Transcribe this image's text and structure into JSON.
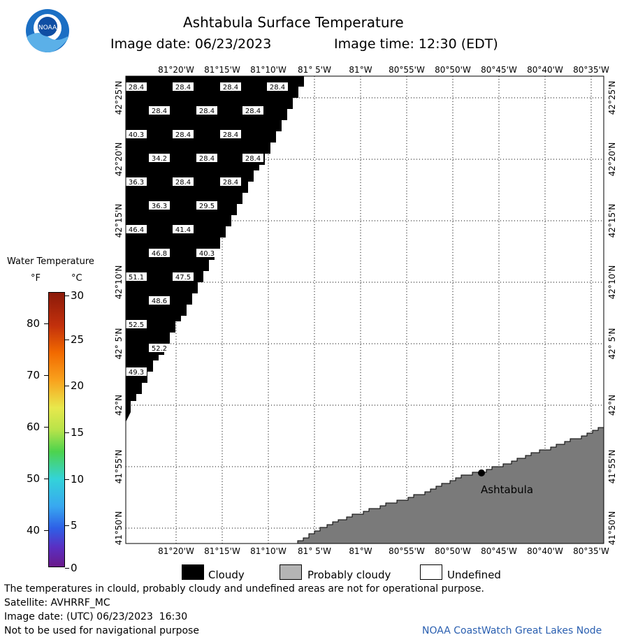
{
  "header": {
    "title": "Ashtabula Surface Temperature",
    "image_date_label": "Image date: 06/23/2023",
    "image_time_label": "Image time: 12:30 (EDT)",
    "logo_text": "NOAA"
  },
  "map": {
    "lon_labels": [
      "81°20'W",
      "81°15'W",
      "81°10'W",
      "81° 5'W",
      "81°W",
      "80°55'W",
      "80°50'W",
      "80°45'W",
      "80°40'W",
      "80°35'W"
    ],
    "lat_labels": [
      "42°25'N",
      "42°20'N",
      "42°15'N",
      "42°10'N",
      "42° 5'N",
      "42°N",
      "41°55'N",
      "41°50'N"
    ],
    "city_label": "Ashtabula",
    "temperatures": [
      {
        "row": 0,
        "values": [
          "28.4",
          "28.4",
          "28.4",
          "28.4"
        ]
      },
      {
        "row": 1,
        "values": [
          "28.4",
          "28.4",
          "28.4"
        ]
      },
      {
        "row": 2,
        "values": [
          "40.3",
          "28.4",
          "28.4"
        ]
      },
      {
        "row": 3,
        "values": [
          "34.2",
          "28.4",
          "28.4"
        ]
      },
      {
        "row": 4,
        "values": [
          "36.3",
          "28.4",
          "28.4"
        ]
      },
      {
        "row": 5,
        "values": [
          "36.3",
          "29.5"
        ]
      },
      {
        "row": 6,
        "values": [
          "46.4",
          "41.4"
        ]
      },
      {
        "row": 7,
        "values": [
          "46.8",
          "40.3"
        ]
      },
      {
        "row": 8,
        "values": [
          "51.1",
          "47.5"
        ]
      },
      {
        "row": 9,
        "values": [
          "48.6"
        ]
      },
      {
        "row": 10,
        "values": [
          "52.5"
        ]
      },
      {
        "row": 11,
        "values": [
          "52.2"
        ]
      },
      {
        "row": 12,
        "values": [
          "49.3"
        ]
      }
    ]
  },
  "colorbar": {
    "title": "Water Temperature",
    "unit_f": "°F",
    "unit_c": "°C",
    "f_ticks": [
      "80",
      "70",
      "60",
      "50",
      "40"
    ],
    "c_ticks": [
      "30",
      "25",
      "20",
      "15",
      "10",
      "5",
      "0"
    ]
  },
  "legend": {
    "cloudy": "Cloudy",
    "probably_cloudy": "Probably cloudy",
    "undefined": "Undefined",
    "colors": {
      "cloudy": "#000000",
      "probably_cloudy": "#b4b4b4",
      "undefined": "#ffffff",
      "land": "#7a7a7a"
    }
  },
  "footer": {
    "disclaimer": "The temperatures in clould, probably cloudy and undefined areas are not for operational purpose.",
    "satellite": "Satellite: AVHRRF_MC",
    "utc_date": "Image date: (UTC) 06/23/2023  16:30",
    "nav_warning": "Not to be used for navigational purpose",
    "credit": "NOAA CoastWatch Great Lakes Node"
  }
}
